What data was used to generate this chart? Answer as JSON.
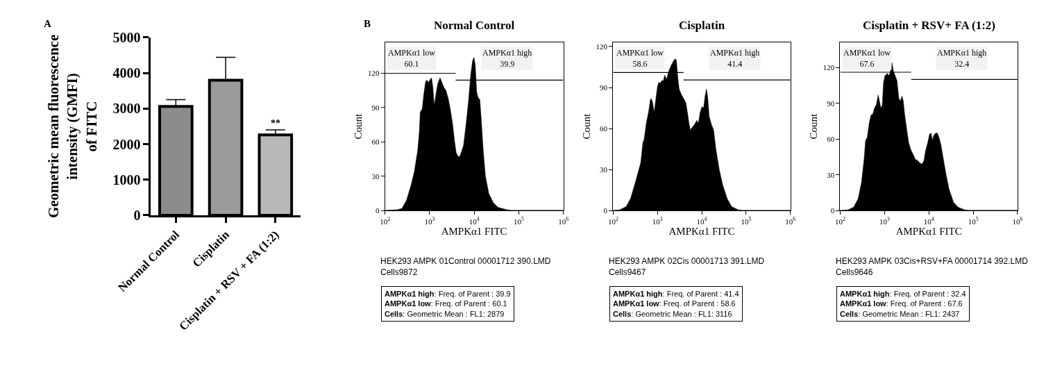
{
  "chart_data": [
    {
      "type": "bar",
      "categories": [
        "Normal Control",
        "Cisplatin",
        "Cisplatin + RSV + FA (1:2)"
      ],
      "values": [
        3060,
        3800,
        2260
      ],
      "errors": [
        [
          3060,
          3250
        ],
        [
          3800,
          4440
        ],
        [
          2260,
          2400
        ]
      ],
      "colors": [
        "#8c8c8c",
        "#9a9a9a",
        "#b8b8b8"
      ],
      "ylabel": "Geometric mean fluorescence\nintensity (GMFI)\nof FITC",
      "ylim": [
        0,
        5000
      ],
      "yticks": [
        0,
        1000,
        2000,
        3000,
        4000,
        5000
      ],
      "annotations": [
        "A",
        {
          "text": "**",
          "x": "Cisplatin + RSV + FA (1:2)",
          "y": 2400
        }
      ]
    },
    {
      "type": "area",
      "title": "Normal Control",
      "xlabel": "AMPKα1 FITC",
      "ylabel": "Count",
      "log": "x",
      "xlim": [
        100,
        1000000
      ],
      "xticks": [
        {
          "value": 100,
          "label": "10$^{2}$"
        },
        {
          "value": 1000,
          "label": "10$^{3}$"
        },
        {
          "value": 10000,
          "label": "10$^{4}$"
        },
        {
          "value": 100000,
          "label": "10$^{5}$"
        },
        {
          "value": 1000000,
          "label": "10$^{6}$"
        }
      ],
      "ylim": [
        0,
        147
      ],
      "yticks": [
        0,
        30,
        60,
        90,
        120
      ],
      "series": [
        {
          "type": "area",
          "color": "#000000",
          "x": [
            100,
            190,
            240,
            303,
            382,
            455,
            542,
            589,
            617,
            684,
            743,
            815,
            875,
            938,
            1006,
            1104,
            1184,
            1270,
            1393,
            1531,
            1718,
            1888,
            2072,
            2328,
            2616,
            2939,
            3304,
            3624,
            3935,
            4266,
            4688,
            5140,
            5780,
            6650,
            7470,
            8390,
            9220,
            9880,
            10600,
            11370,
            12190,
            13390,
            14360,
            15950,
            17910,
            21330,
            26920,
            34040,
            54200,
            68400,
            1000000
          ],
          "values": [
            0.4,
            0.8,
            2,
            9,
            22,
            34,
            53,
            69,
            86,
            89,
            102,
            113,
            114,
            112,
            114,
            116,
            108,
            92,
            102,
            111,
            116,
            112,
            108,
            105,
            98,
            88,
            75,
            61,
            51,
            48,
            47,
            51,
            57,
            77,
            96,
            119,
            131,
            134,
            127,
            104,
            99,
            97,
            81,
            53,
            30,
            15,
            7,
            3,
            0.8,
            0.4,
            0.4
          ]
        },
        {
          "type": "line",
          "color": "#000000",
          "x": [
            100,
            3850
          ],
          "values": [
            120,
            120
          ]
        },
        {
          "type": "line",
          "color": "#000000",
          "x": [
            3850,
            1000000
          ],
          "values": [
            114,
            114
          ]
        }
      ],
      "annotations": [
        "AMPKα1 low\n60.1",
        "AMPKα1 high\n39.9",
        "B",
        "HEK293 AMPK 01Control 00001712 390.LMD\nCells9872",
        "AMPKα1 high: Freq. of Parent : 39.9\nAMPKα1 low: Freq. of Parent : 60.1\nCells: Geometric Mean : FL1: 2879"
      ]
    },
    {
      "type": "area",
      "title": "Cisplatin",
      "xlabel": "AMPKα1 FITC",
      "ylabel": "Count",
      "log": "x",
      "xlim": [
        100,
        1000000
      ],
      "xticks": [
        {
          "value": 100,
          "label": "10$^{2}$"
        },
        {
          "value": 1000,
          "label": "10$^{3}$"
        },
        {
          "value": 10000,
          "label": "10$^{4}$"
        },
        {
          "value": 100000,
          "label": "10$^{5}$"
        },
        {
          "value": 1000000,
          "label": "10$^{6}$"
        }
      ],
      "ylim": [
        0,
        123
      ],
      "yticks": [
        0,
        30,
        60,
        90,
        120
      ],
      "series": [
        {
          "type": "area",
          "color": "#000000",
          "x": [
            100,
            139,
            197,
            248,
            313,
            373,
            420,
            471,
            500,
            561,
            631,
            693,
            726,
            778,
            845,
            916,
            1006,
            1079,
            1157,
            1241,
            1362,
            1462,
            1603,
            1803,
            2024,
            2275,
            2496,
            2679,
            2872,
            3083,
            3459,
            3890,
            4372,
            4797,
            5140,
            5520,
            6120,
            6890,
            7740,
            8390,
            9220,
            10120,
            10990,
            11910,
            12770,
            13710,
            14690,
            16520,
            18530,
            20840,
            24830,
            29580,
            37330,
            47100,
            66800,
            84500,
            1000000
          ],
          "values": [
            0.3,
            0.6,
            3,
            9,
            20,
            29,
            35,
            50,
            52,
            64,
            72,
            81,
            82,
            79,
            72,
            81,
            91,
            94,
            93,
            95,
            95,
            99,
            96,
            102,
            106,
            109,
            111,
            110,
            98,
            89,
            85,
            82,
            79,
            71,
            64,
            59,
            61,
            63,
            66,
            64,
            72,
            76,
            75,
            84,
            89,
            82,
            69,
            63,
            59,
            45,
            30,
            19,
            9,
            3,
            0.6,
            0.3,
            0.3
          ]
        },
        {
          "type": "line",
          "color": "#000000",
          "x": [
            100,
            3900
          ],
          "values": [
            101,
            101
          ]
        },
        {
          "type": "line",
          "color": "#000000",
          "x": [
            3900,
            1000000
          ],
          "values": [
            95.5,
            95.5
          ]
        }
      ],
      "annotations": [
        "AMPKα1 low\n58.6",
        "AMPKα1 high\n41.4",
        "HEK293 AMPK 02Cis 00001713 391.LMD\nCells9467",
        "AMPKα1 high: Freq. of Parent : 41.4\nAMPKα1 low: Freq. of Parent : 58.6\nCells: Geometric Mean : FL1: 3116"
      ]
    },
    {
      "type": "area",
      "title": "Cisplatin + RSV+ FA (1:2)",
      "xlabel": "AMPKα1 FITC",
      "ylabel": "Count",
      "log": "x",
      "xlim": [
        100,
        1000000
      ],
      "xticks": [
        {
          "value": 100,
          "label": "10$^{2}$"
        },
        {
          "value": 1000,
          "label": "10$^{3}$"
        },
        {
          "value": 10000,
          "label": "10$^{4}$"
        },
        {
          "value": 100000,
          "label": "10$^{5}$"
        },
        {
          "value": 1000000,
          "label": "10$^{6}$"
        }
      ],
      "ylim": [
        0,
        141
      ],
      "yticks": [
        0,
        30,
        60,
        90,
        120
      ],
      "series": [
        {
          "type": "area",
          "color": "#000000",
          "x": [
            100,
            150,
            201,
            254,
            303,
            348,
            373,
            405,
            455,
            494,
            542,
            596,
            653,
            718,
            769,
            825,
            885,
            948,
            1018,
            1091,
            1170,
            1256,
            1346,
            1479,
            1585,
            1741,
            1910,
            2099,
            2301,
            2466,
            2649,
            2838,
            3119,
            3500,
            3936,
            4426,
            4966,
            5585,
            6266,
            7047,
            7745,
            8395,
            9440,
            10350,
            11250,
            12050,
            12910,
            14190,
            15560,
            17100,
            18750,
            21090,
            24270,
            28580,
            36060,
            45500,
            64560,
            81470,
            1000000
          ],
          "values": [
            0.4,
            0.7,
            3,
            10,
            24,
            44,
            59,
            61,
            74,
            80,
            81,
            86,
            89,
            97,
            92,
            86,
            88,
            107,
            113,
            114,
            115,
            113,
            116,
            124,
            117,
            113,
            109,
            94,
            92,
            96,
            92,
            81,
            70,
            57,
            51,
            47,
            43,
            42,
            40,
            39,
            42,
            50,
            57,
            64,
            65,
            59,
            63,
            65,
            65,
            61,
            55,
            44,
            31,
            18,
            7,
            3,
            0.7,
            0.4,
            0.4
          ]
        },
        {
          "type": "line",
          "color": "#000000",
          "x": [
            100,
            4000
          ],
          "values": [
            116,
            116
          ]
        },
        {
          "type": "line",
          "color": "#000000",
          "x": [
            4000,
            1000000
          ],
          "values": [
            110,
            110
          ]
        }
      ],
      "annotations": [
        "AMPKα1 low\n67.6",
        "AMPKα1 high\n32.4",
        "HEK293 AMPK 03Cis+RSV+FA 00001714 392.LMD\nCells9646",
        "AMPKα1 high: Freq. of Parent : 32.4\nAMPKα1 low: Freq. of Parent : 67.6\nCells: Geometric Mean : FL1: 2437"
      ]
    }
  ]
}
